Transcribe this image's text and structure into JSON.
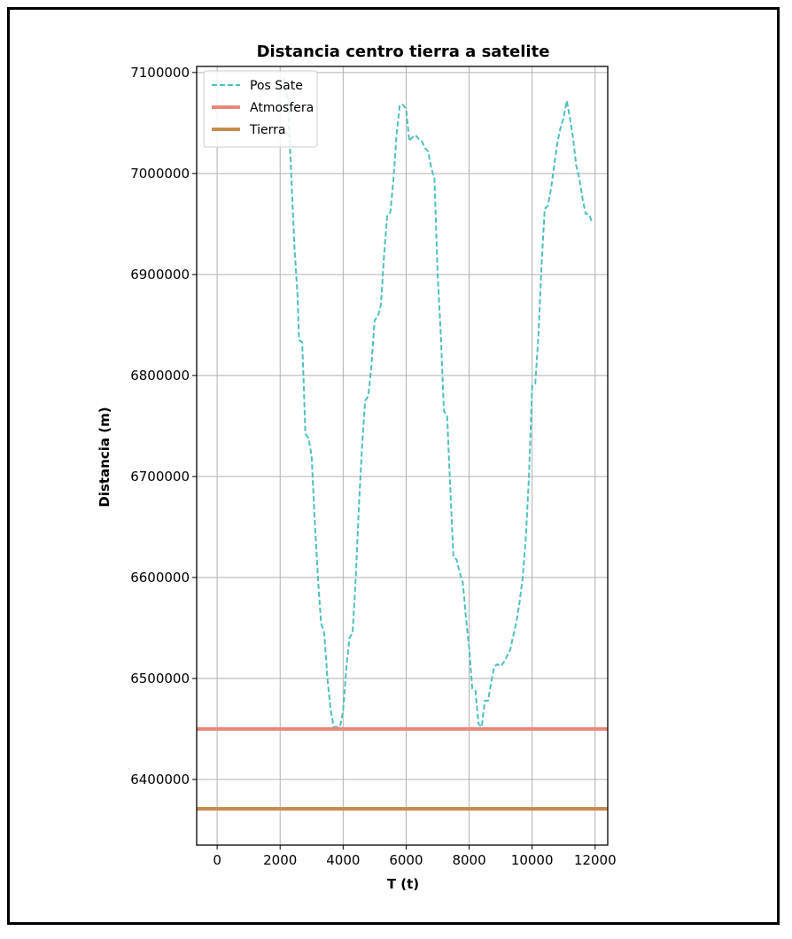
{
  "chart_data": {
    "type": "line",
    "title": "Distancia centro tierra a satelite",
    "xlabel": "T (t)",
    "ylabel": "Distancia (m)",
    "xlim": [
      -650,
      12400
    ],
    "ylim": [
      6335000,
      7106000
    ],
    "xticks": [
      0,
      2000,
      4000,
      6000,
      8000,
      10000,
      12000
    ],
    "yticks": [
      6400000,
      6500000,
      6600000,
      6700000,
      6800000,
      6900000,
      7000000,
      7100000
    ],
    "xtick_labels": [
      "0",
      "2000",
      "4000",
      "6000",
      "8000",
      "10000",
      "12000"
    ],
    "ytick_labels": [
      "6400000",
      "6500000",
      "6600000",
      "6700000",
      "6800000",
      "6900000",
      "7000000",
      "7100000"
    ],
    "grid": true,
    "legend_position": "top-left",
    "series": [
      {
        "name": "Pos Sate",
        "style": "dashed",
        "color": "#4dbfbf",
        "x": [
          2100,
          2250,
          2350,
          2450,
          2550,
          2600,
          2700,
          2750,
          2800,
          2900,
          3000,
          3100,
          3200,
          3300,
          3400,
          3500,
          3600,
          3700,
          3800,
          3900,
          4000,
          4100,
          4200,
          4300,
          4400,
          4500,
          4600,
          4700,
          4800,
          4900,
          5000,
          5100,
          5200,
          5300,
          5400,
          5500,
          5600,
          5700,
          5800,
          5900,
          6000,
          6100,
          6200,
          6300,
          6400,
          6500,
          6600,
          6700,
          6800,
          6900,
          7000,
          7100,
          7200,
          7300,
          7400,
          7500,
          7600,
          7700,
          7800,
          7900,
          8000,
          8100,
          8200,
          8300,
          8400,
          8500,
          8600,
          8700,
          8800,
          8900,
          9000,
          9100,
          9200,
          9300,
          9400,
          9500,
          9600,
          9700,
          9800,
          9900,
          10000,
          10100,
          10200,
          10300,
          10400,
          10500,
          10600,
          10700,
          10800,
          10900,
          11000,
          11100,
          11200,
          11300,
          11400,
          11500,
          11600,
          11700,
          11800,
          11900
        ],
        "y": [
          7095000,
          7070000,
          7000000,
          6930000,
          6880000,
          6835000,
          6833000,
          6790000,
          6742000,
          6738000,
          6720000,
          6655000,
          6600000,
          6555000,
          6545000,
          6500000,
          6470000,
          6452000,
          6452000,
          6452000,
          6468000,
          6510000,
          6540000,
          6545000,
          6600000,
          6670000,
          6730000,
          6775000,
          6780000,
          6810000,
          6855000,
          6858000,
          6870000,
          6920000,
          6958000,
          6962000,
          6995000,
          7040000,
          7068000,
          7068000,
          7064000,
          7032000,
          7036000,
          7038000,
          7034000,
          7032000,
          7025000,
          7022000,
          7005000,
          6995000,
          6900000,
          6840000,
          6765000,
          6760000,
          6690000,
          6620000,
          6618000,
          6605000,
          6595000,
          6560000,
          6530000,
          6490000,
          6488000,
          6455000,
          6452000,
          6478000,
          6478000,
          6496000,
          6512000,
          6514000,
          6512000,
          6516000,
          6522000,
          6528000,
          6542000,
          6556000,
          6575000,
          6600000,
          6640000,
          6700000,
          6790000,
          6792000,
          6840000,
          6910000,
          6965000,
          6968000,
          6985000,
          7008000,
          7030000,
          7045000,
          7055000,
          7072000,
          7055000,
          7035000,
          7008000,
          6995000,
          6975000,
          6960000,
          6960000,
          6952000
        ]
      },
      {
        "name": "Atmosfera",
        "style": "solid",
        "color": "#e8877a",
        "x": [
          -650,
          12400
        ],
        "y": [
          6450000,
          6450000
        ]
      },
      {
        "name": "Tierra",
        "style": "solid",
        "color": "#c98a4f",
        "x": [
          -650,
          12400
        ],
        "y": [
          6371000,
          6371000
        ]
      }
    ]
  }
}
